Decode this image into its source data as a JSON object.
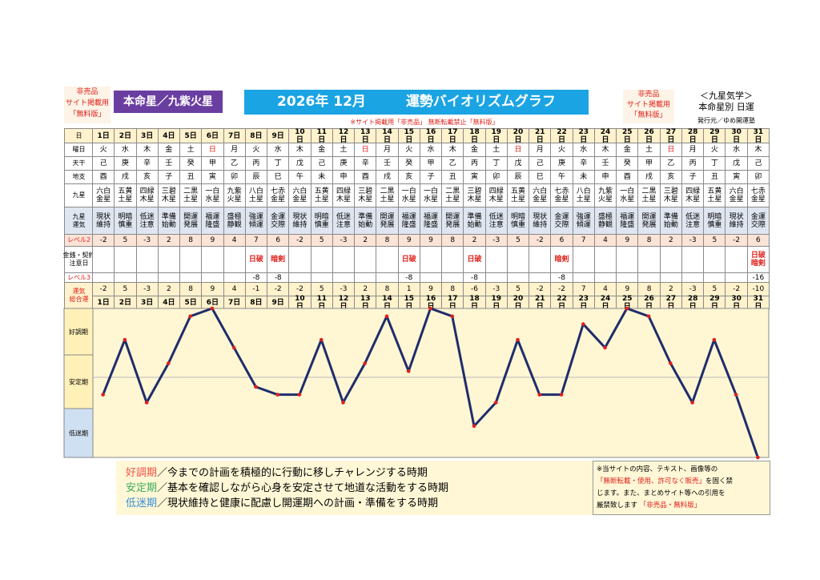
{
  "header": {
    "left_note": [
      "非売品",
      "サイト掲載用",
      "「無料版」"
    ],
    "star": "本命星／九紫火星",
    "title": "2026年 12月",
    "title2": "運勢バイオリズムグラフ",
    "notice": "※サイト掲載用「非売品」 無断転載禁止「無料版」",
    "right_note": [
      "非売品",
      "サイト掲載用",
      "「無料版」"
    ],
    "brand": "＜九星気学＞",
    "brand_sub": "本命星別 日運",
    "publisher": "発行元／ゆめ開運塾"
  },
  "table": {
    "row_labels": [
      [
        "日"
      ],
      [
        "曜日"
      ],
      [
        "天干"
      ],
      [
        "地支"
      ],
      [
        "九星"
      ],
      [
        "九星",
        "運気"
      ],
      [
        "レベル2"
      ],
      [
        "金銭・契約",
        "注意日"
      ],
      [
        "レベル3"
      ],
      [
        "運気",
        "総合運"
      ]
    ],
    "days": [
      "1日",
      "2日",
      "3日",
      "4日",
      "5日",
      "6日",
      "7日",
      "8日",
      "9日",
      "10日",
      "11日",
      "12日",
      "13日",
      "14日",
      "15日",
      "16日",
      "17日",
      "18日",
      "19日",
      "20日",
      "21日",
      "22日",
      "23日",
      "24日",
      "25日",
      "26日",
      "27日",
      "28日",
      "29日",
      "30日",
      "31日"
    ],
    "weekdays": [
      "火",
      "水",
      "木",
      "金",
      "土",
      "日",
      "月",
      "火",
      "水",
      "木",
      "金",
      "土",
      "日",
      "月",
      "火",
      "水",
      "木",
      "金",
      "土",
      "日",
      "月",
      "火",
      "水",
      "木",
      "金",
      "土",
      "日",
      "月",
      "火",
      "水",
      "木"
    ],
    "weekday_colors": [
      "#000",
      "#000",
      "#000",
      "#000",
      "#000",
      "#e0201b",
      "#000",
      "#000",
      "#000",
      "#000",
      "#000",
      "#000",
      "#e0201b",
      "#000",
      "#000",
      "#000",
      "#000",
      "#000",
      "#000",
      "#e0201b",
      "#000",
      "#000",
      "#000",
      "#000",
      "#000",
      "#000",
      "#e0201b",
      "#000",
      "#000",
      "#000",
      "#000"
    ],
    "stems": [
      "己",
      "庚",
      "辛",
      "壬",
      "癸",
      "甲",
      "乙",
      "丙",
      "丁",
      "戊",
      "己",
      "庚",
      "辛",
      "壬",
      "癸",
      "甲",
      "乙",
      "丙",
      "丁",
      "戊",
      "己",
      "庚",
      "辛",
      "壬",
      "癸",
      "甲",
      "乙",
      "丙",
      "丁",
      "戊",
      "己"
    ],
    "branches": [
      "酉",
      "戌",
      "亥",
      "子",
      "丑",
      "寅",
      "卯",
      "辰",
      "巳",
      "午",
      "未",
      "申",
      "酉",
      "戌",
      "亥",
      "子",
      "丑",
      "寅",
      "卯",
      "辰",
      "巳",
      "午",
      "未",
      "申",
      "酉",
      "戌",
      "亥",
      "子",
      "丑",
      "寅",
      "卯"
    ],
    "stars": [
      "六白金星",
      "五黄土星",
      "四緑木星",
      "三碧木星",
      "二黒土星",
      "一白水星",
      "九紫火星",
      "八白土星",
      "七赤金星",
      "六白金星",
      "五黄土星",
      "四緑木星",
      "三碧木星",
      "二黒土星",
      "一白水星",
      "一白水星",
      "二黒土星",
      "三碧木星",
      "四緑木星",
      "五黄土星",
      "六白金星",
      "七赤金星",
      "八白土星",
      "九紫火星",
      "一白水星",
      "二黒土星",
      "三碧木星",
      "四緑木星",
      "五黄土星",
      "六白金星",
      "七赤金星"
    ],
    "fortunes": [
      "現状維持",
      "明暗慎重",
      "低迷注意",
      "準備始動",
      "開運発展",
      "福運隆盛",
      "盛極静観",
      "強運傾運",
      "金運交際",
      "現状維持",
      "明暗慎重",
      "低迷注意",
      "準備始動",
      "開運発展",
      "福運隆盛",
      "福運隆盛",
      "開運発展",
      "準備始動",
      "低迷注意",
      "明暗慎重",
      "現状維持",
      "金運交際",
      "強運傾運",
      "盛極静観",
      "福運隆盛",
      "開運発展",
      "準備始動",
      "低迷注意",
      "明暗慎重",
      "現状維持",
      "金運交際"
    ],
    "level2": [
      -2,
      5,
      -3,
      2,
      8,
      9,
      4,
      7,
      6,
      -2,
      5,
      -3,
      2,
      8,
      9,
      9,
      8,
      2,
      -3,
      5,
      -2,
      6,
      7,
      4,
      9,
      8,
      2,
      -3,
      5,
      -2,
      6
    ],
    "caution": [
      [],
      [],
      [],
      [],
      [],
      [],
      [],
      [
        "日破"
      ],
      [
        "暗剣"
      ],
      [],
      [],
      [],
      [],
      [],
      [
        "日破"
      ],
      [],
      [],
      [
        "日破"
      ],
      [],
      [],
      [],
      [
        "暗剣"
      ],
      [],
      [],
      [],
      [],
      [],
      [],
      [],
      [],
      [
        "日破",
        "暗剣"
      ]
    ],
    "level3": [
      null,
      null,
      null,
      null,
      null,
      null,
      null,
      -8,
      -8,
      null,
      null,
      null,
      null,
      null,
      -8,
      null,
      null,
      -8,
      null,
      null,
      null,
      -8,
      null,
      null,
      null,
      null,
      null,
      null,
      null,
      null,
      -16
    ],
    "total": [
      -2,
      5,
      -3,
      2,
      8,
      9,
      4,
      -1,
      -2,
      -2,
      5,
      -3,
      2,
      8,
      1,
      9,
      8,
      -6,
      -3,
      5,
      -2,
      -2,
      7,
      4,
      9,
      8,
      2,
      -3,
      5,
      -2,
      -10
    ]
  },
  "chart_data": {
    "type": "line",
    "bands": [
      "好調期",
      "安定期",
      "低迷期"
    ],
    "values": [
      -2,
      5,
      -3,
      2,
      8,
      9,
      4,
      -1,
      -2,
      -2,
      5,
      -3,
      2,
      8,
      1,
      9,
      8,
      -6,
      -3,
      5,
      -2,
      -2,
      7,
      4,
      9,
      8,
      2,
      -3,
      5,
      -2,
      -10
    ],
    "ylim": [
      -10,
      9
    ],
    "color": "#1f2d6b",
    "marker_color": "#e0201b"
  },
  "legend": [
    {
      "term": "好調期",
      "text": "／今までの計画を積極的に行動に移しチャレンジする時期",
      "color": "#f0514a"
    },
    {
      "term": "安定期",
      "text": "／基本を確認しながら心身を安定させて地道な活動をする時期",
      "color": "#3cae5c"
    },
    {
      "term": "低迷期",
      "text": "／現状維持と健康に配慮し開運期への計画・準備をする時期",
      "color": "#3c8fd8"
    }
  ],
  "notes": [
    [
      {
        "text": "※当サイトの内容、テキスト、画像等の",
        "color": "#000"
      }
    ],
    [
      {
        "text": "「無断転載・使用、許可なく販売」",
        "color": "#e0201b"
      },
      {
        "text": "を固く禁",
        "color": "#000"
      }
    ],
    [
      {
        "text": "じます。また、まとめサイト等への引用を",
        "color": "#000"
      }
    ],
    [
      {
        "text": "厳禁致します",
        "color": "#000"
      },
      {
        "text": " 「非売品・無料版」",
        "color": "#e0201b"
      }
    ]
  ]
}
